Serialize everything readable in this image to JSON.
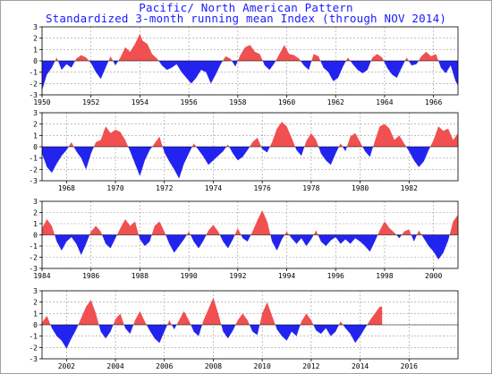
{
  "title": "Pacific/ North American Pattern",
  "subtitle": "Standardized 3-month running mean Index (through NOV 2014)",
  "colors": {
    "positive": "#f05050",
    "negative": "#2323f0",
    "grid": "#9a9a9a",
    "title": "#1a1aff"
  },
  "chart_data": [
    {
      "type": "area",
      "panel": 1,
      "x_range": [
        1950,
        1967
      ],
      "ylim": [
        -3,
        3
      ],
      "yticks": [
        -3,
        -2,
        -1,
        0,
        1,
        2,
        3
      ],
      "xticks": [
        "1950",
        "1952",
        "1954",
        "1956",
        "1958",
        "1960",
        "1962",
        "1964",
        "1966"
      ],
      "grid": "dashed",
      "points": [
        [
          1950.0,
          -2.6
        ],
        [
          1950.2,
          -1.2
        ],
        [
          1950.4,
          -0.6
        ],
        [
          1950.6,
          0.3
        ],
        [
          1950.8,
          -0.8
        ],
        [
          1951.0,
          -0.3
        ],
        [
          1951.2,
          -0.6
        ],
        [
          1951.4,
          0.2
        ],
        [
          1951.6,
          0.5
        ],
        [
          1951.8,
          0.3
        ],
        [
          1952.0,
          -0.2
        ],
        [
          1952.2,
          -1.0
        ],
        [
          1952.4,
          -1.6
        ],
        [
          1952.6,
          -0.6
        ],
        [
          1952.8,
          0.4
        ],
        [
          1953.0,
          -0.4
        ],
        [
          1953.2,
          0.3
        ],
        [
          1953.4,
          1.2
        ],
        [
          1953.6,
          0.8
        ],
        [
          1953.8,
          1.5
        ],
        [
          1954.0,
          2.4
        ],
        [
          1954.1,
          1.8
        ],
        [
          1954.3,
          1.5
        ],
        [
          1954.5,
          0.6
        ],
        [
          1954.7,
          0.2
        ],
        [
          1954.9,
          -0.4
        ],
        [
          1955.1,
          -0.8
        ],
        [
          1955.3,
          -0.6
        ],
        [
          1955.5,
          -0.3
        ],
        [
          1955.7,
          -1.0
        ],
        [
          1955.9,
          -1.5
        ],
        [
          1956.1,
          -2.0
        ],
        [
          1956.3,
          -1.5
        ],
        [
          1956.5,
          -0.8
        ],
        [
          1956.7,
          -1.0
        ],
        [
          1956.9,
          -2.0
        ],
        [
          1957.1,
          -1.2
        ],
        [
          1957.3,
          -0.3
        ],
        [
          1957.5,
          0.4
        ],
        [
          1957.7,
          0.2
        ],
        [
          1957.9,
          -0.5
        ],
        [
          1958.1,
          0.5
        ],
        [
          1958.3,
          1.2
        ],
        [
          1958.5,
          1.4
        ],
        [
          1958.7,
          0.8
        ],
        [
          1958.9,
          0.6
        ],
        [
          1959.1,
          -0.4
        ],
        [
          1959.3,
          -0.8
        ],
        [
          1959.5,
          -0.2
        ],
        [
          1959.7,
          0.6
        ],
        [
          1959.9,
          1.4
        ],
        [
          1960.1,
          0.6
        ],
        [
          1960.3,
          0.5
        ],
        [
          1960.5,
          0.2
        ],
        [
          1960.7,
          -0.4
        ],
        [
          1960.9,
          -0.8
        ],
        [
          1961.1,
          0.6
        ],
        [
          1961.3,
          0.4
        ],
        [
          1961.5,
          -0.6
        ],
        [
          1961.7,
          -1.0
        ],
        [
          1961.9,
          -1.8
        ],
        [
          1962.1,
          -1.5
        ],
        [
          1962.3,
          -0.5
        ],
        [
          1962.5,
          0.3
        ],
        [
          1962.7,
          -0.3
        ],
        [
          1962.9,
          -0.8
        ],
        [
          1963.1,
          -1.1
        ],
        [
          1963.3,
          -0.8
        ],
        [
          1963.5,
          0.3
        ],
        [
          1963.7,
          0.6
        ],
        [
          1963.9,
          0.3
        ],
        [
          1964.1,
          -0.6
        ],
        [
          1964.3,
          -1.2
        ],
        [
          1964.5,
          -1.5
        ],
        [
          1964.7,
          -0.6
        ],
        [
          1964.9,
          0.3
        ],
        [
          1965.1,
          -0.4
        ],
        [
          1965.3,
          -0.3
        ],
        [
          1965.5,
          0.4
        ],
        [
          1965.7,
          0.8
        ],
        [
          1965.9,
          0.4
        ],
        [
          1966.1,
          0.6
        ],
        [
          1966.3,
          -0.6
        ],
        [
          1966.5,
          -1.1
        ],
        [
          1966.7,
          -0.4
        ],
        [
          1966.9,
          -1.8
        ],
        [
          1967.0,
          -2.2
        ]
      ]
    },
    {
      "type": "area",
      "panel": 2,
      "x_range": [
        1967,
        1984
      ],
      "ylim": [
        -3,
        3
      ],
      "yticks": [
        -3,
        -2,
        -1,
        0,
        1,
        2,
        3
      ],
      "xticks": [
        "1968",
        "1970",
        "1972",
        "1974",
        "1976",
        "1978",
        "1980",
        "1982"
      ],
      "grid": "dashed",
      "points": [
        [
          1967.0,
          -0.6
        ],
        [
          1967.2,
          -1.8
        ],
        [
          1967.4,
          -2.3
        ],
        [
          1967.6,
          -1.5
        ],
        [
          1967.8,
          -0.8
        ],
        [
          1968.0,
          -0.3
        ],
        [
          1968.2,
          0.4
        ],
        [
          1968.4,
          -0.4
        ],
        [
          1968.6,
          -1.0
        ],
        [
          1968.8,
          -2.0
        ],
        [
          1969.0,
          -0.6
        ],
        [
          1969.2,
          0.4
        ],
        [
          1969.4,
          0.6
        ],
        [
          1969.6,
          1.8
        ],
        [
          1969.8,
          1.2
        ],
        [
          1970.0,
          1.5
        ],
        [
          1970.2,
          1.3
        ],
        [
          1970.4,
          0.6
        ],
        [
          1970.6,
          -0.4
        ],
        [
          1970.8,
          -1.5
        ],
        [
          1971.0,
          -2.6
        ],
        [
          1971.2,
          -1.2
        ],
        [
          1971.4,
          -0.3
        ],
        [
          1971.6,
          0.3
        ],
        [
          1971.8,
          0.9
        ],
        [
          1972.0,
          -0.5
        ],
        [
          1972.2,
          -1.3
        ],
        [
          1972.4,
          -2.0
        ],
        [
          1972.6,
          -2.8
        ],
        [
          1972.8,
          -1.5
        ],
        [
          1973.0,
          -0.6
        ],
        [
          1973.2,
          0.3
        ],
        [
          1973.4,
          -0.3
        ],
        [
          1973.6,
          -0.9
        ],
        [
          1973.8,
          -1.6
        ],
        [
          1974.0,
          -1.2
        ],
        [
          1974.2,
          -0.8
        ],
        [
          1974.4,
          -0.4
        ],
        [
          1974.6,
          0.2
        ],
        [
          1974.8,
          -0.6
        ],
        [
          1975.0,
          -1.2
        ],
        [
          1975.2,
          -0.9
        ],
        [
          1975.4,
          -0.3
        ],
        [
          1975.6,
          0.4
        ],
        [
          1975.8,
          0.8
        ],
        [
          1976.0,
          -0.2
        ],
        [
          1976.2,
          -0.5
        ],
        [
          1976.4,
          0.4
        ],
        [
          1976.6,
          1.6
        ],
        [
          1976.8,
          2.2
        ],
        [
          1977.0,
          1.8
        ],
        [
          1977.2,
          0.8
        ],
        [
          1977.4,
          -0.3
        ],
        [
          1977.6,
          -0.8
        ],
        [
          1977.8,
          0.5
        ],
        [
          1978.0,
          1.2
        ],
        [
          1978.2,
          0.6
        ],
        [
          1978.4,
          -0.6
        ],
        [
          1978.6,
          -1.2
        ],
        [
          1978.8,
          -1.6
        ],
        [
          1979.0,
          -0.6
        ],
        [
          1979.2,
          0.3
        ],
        [
          1979.4,
          -0.4
        ],
        [
          1979.6,
          0.9
        ],
        [
          1979.8,
          1.2
        ],
        [
          1980.0,
          0.4
        ],
        [
          1980.2,
          -0.4
        ],
        [
          1980.4,
          -0.9
        ],
        [
          1980.6,
          0.5
        ],
        [
          1980.8,
          1.8
        ],
        [
          1981.0,
          2.0
        ],
        [
          1981.2,
          1.6
        ],
        [
          1981.4,
          0.6
        ],
        [
          1981.6,
          1.0
        ],
        [
          1981.8,
          0.3
        ],
        [
          1982.0,
          -0.4
        ],
        [
          1982.2,
          -1.2
        ],
        [
          1982.4,
          -1.8
        ],
        [
          1982.6,
          -1.3
        ],
        [
          1982.8,
          -0.3
        ],
        [
          1983.0,
          0.6
        ],
        [
          1983.2,
          1.8
        ],
        [
          1983.4,
          1.4
        ],
        [
          1983.6,
          1.6
        ],
        [
          1983.8,
          0.6
        ],
        [
          1984.0,
          1.2
        ]
      ]
    },
    {
      "type": "area",
      "panel": 3,
      "x_range": [
        1984,
        2001
      ],
      "ylim": [
        -3,
        3
      ],
      "yticks": [
        -3,
        -2,
        -1,
        0,
        1,
        2,
        3
      ],
      "xticks": [
        "1984",
        "1986",
        "1988",
        "1990",
        "1992",
        "1994",
        "1996",
        "1998",
        "2000"
      ],
      "grid": "dashed",
      "points": [
        [
          1984.0,
          0.6
        ],
        [
          1984.2,
          1.4
        ],
        [
          1984.4,
          0.8
        ],
        [
          1984.6,
          -0.6
        ],
        [
          1984.8,
          -1.4
        ],
        [
          1985.0,
          -0.6
        ],
        [
          1985.2,
          -0.2
        ],
        [
          1985.4,
          -0.8
        ],
        [
          1985.6,
          -1.8
        ],
        [
          1985.8,
          -0.8
        ],
        [
          1986.0,
          0.3
        ],
        [
          1986.2,
          0.8
        ],
        [
          1986.4,
          0.3
        ],
        [
          1986.6,
          -0.8
        ],
        [
          1986.8,
          -1.2
        ],
        [
          1987.0,
          -0.3
        ],
        [
          1987.2,
          0.6
        ],
        [
          1987.4,
          1.4
        ],
        [
          1987.6,
          0.8
        ],
        [
          1987.8,
          1.2
        ],
        [
          1988.0,
          -0.4
        ],
        [
          1988.2,
          -1.0
        ],
        [
          1988.4,
          -0.6
        ],
        [
          1988.6,
          0.8
        ],
        [
          1988.8,
          1.2
        ],
        [
          1989.0,
          0.3
        ],
        [
          1989.2,
          -0.8
        ],
        [
          1989.4,
          -1.6
        ],
        [
          1989.6,
          -1.0
        ],
        [
          1989.8,
          -0.4
        ],
        [
          1990.0,
          0.3
        ],
        [
          1990.2,
          -0.6
        ],
        [
          1990.4,
          -1.2
        ],
        [
          1990.6,
          -0.5
        ],
        [
          1990.8,
          0.4
        ],
        [
          1991.0,
          0.9
        ],
        [
          1991.2,
          0.3
        ],
        [
          1991.4,
          -0.6
        ],
        [
          1991.6,
          -1.2
        ],
        [
          1991.8,
          -0.4
        ],
        [
          1992.0,
          0.6
        ],
        [
          1992.2,
          -0.3
        ],
        [
          1992.4,
          -0.6
        ],
        [
          1992.6,
          0.3
        ],
        [
          1992.8,
          1.3
        ],
        [
          1993.0,
          2.2
        ],
        [
          1993.2,
          1.2
        ],
        [
          1993.4,
          -0.6
        ],
        [
          1993.6,
          -1.4
        ],
        [
          1993.8,
          -0.4
        ],
        [
          1994.0,
          0.3
        ],
        [
          1994.2,
          -0.3
        ],
        [
          1994.4,
          -0.8
        ],
        [
          1994.6,
          -0.3
        ],
        [
          1994.8,
          -1.0
        ],
        [
          1995.0,
          -0.4
        ],
        [
          1995.2,
          0.4
        ],
        [
          1995.4,
          -0.6
        ],
        [
          1995.6,
          -1.0
        ],
        [
          1995.8,
          -0.5
        ],
        [
          1996.0,
          -0.2
        ],
        [
          1996.2,
          -0.8
        ],
        [
          1996.4,
          -0.4
        ],
        [
          1996.6,
          -0.8
        ],
        [
          1996.8,
          -0.3
        ],
        [
          1997.0,
          -0.6
        ],
        [
          1997.2,
          -1.0
        ],
        [
          1997.4,
          -1.5
        ],
        [
          1997.6,
          -0.6
        ],
        [
          1997.8,
          0.4
        ],
        [
          1998.0,
          1.2
        ],
        [
          1998.2,
          0.6
        ],
        [
          1998.4,
          0.2
        ],
        [
          1998.6,
          -0.3
        ],
        [
          1998.8,
          0.3
        ],
        [
          1999.0,
          0.5
        ],
        [
          1999.2,
          -0.6
        ],
        [
          1999.4,
          0.4
        ],
        [
          1999.6,
          -0.3
        ],
        [
          1999.8,
          -1.0
        ],
        [
          2000.0,
          -1.5
        ],
        [
          2000.2,
          -2.2
        ],
        [
          2000.4,
          -1.6
        ],
        [
          2000.6,
          -0.5
        ],
        [
          2000.8,
          1.2
        ],
        [
          2001.0,
          1.8
        ]
      ]
    },
    {
      "type": "area",
      "panel": 4,
      "x_range": [
        2001,
        2018
      ],
      "ylim": [
        -3,
        3
      ],
      "yticks": [
        -3,
        -2,
        -1,
        0,
        1,
        2,
        3
      ],
      "xticks": [
        "2002",
        "2004",
        "2006",
        "2008",
        "2010",
        "2012",
        "2014",
        "2016"
      ],
      "grid": "dashed",
      "points": [
        [
          2001.0,
          0.2
        ],
        [
          2001.2,
          0.8
        ],
        [
          2001.4,
          -0.3
        ],
        [
          2001.6,
          -1.0
        ],
        [
          2001.8,
          -1.4
        ],
        [
          2002.0,
          -2.1
        ],
        [
          2002.2,
          -1.2
        ],
        [
          2002.4,
          -0.4
        ],
        [
          2002.6,
          0.6
        ],
        [
          2002.8,
          1.6
        ],
        [
          2003.0,
          2.2
        ],
        [
          2003.2,
          1.0
        ],
        [
          2003.4,
          -0.6
        ],
        [
          2003.6,
          -1.2
        ],
        [
          2003.8,
          -0.6
        ],
        [
          2004.0,
          0.5
        ],
        [
          2004.2,
          1.0
        ],
        [
          2004.4,
          -0.3
        ],
        [
          2004.6,
          -0.8
        ],
        [
          2004.8,
          0.4
        ],
        [
          2005.0,
          1.2
        ],
        [
          2005.2,
          0.3
        ],
        [
          2005.4,
          -0.5
        ],
        [
          2005.6,
          -1.2
        ],
        [
          2005.8,
          -1.6
        ],
        [
          2006.0,
          -0.6
        ],
        [
          2006.2,
          0.4
        ],
        [
          2006.4,
          -0.4
        ],
        [
          2006.6,
          0.4
        ],
        [
          2006.8,
          1.2
        ],
        [
          2007.0,
          0.4
        ],
        [
          2007.2,
          -0.6
        ],
        [
          2007.4,
          -1.0
        ],
        [
          2007.6,
          0.4
        ],
        [
          2007.8,
          1.4
        ],
        [
          2008.0,
          2.4
        ],
        [
          2008.2,
          1.0
        ],
        [
          2008.4,
          -0.6
        ],
        [
          2008.6,
          -1.2
        ],
        [
          2008.8,
          -0.5
        ],
        [
          2009.0,
          0.4
        ],
        [
          2009.2,
          1.0
        ],
        [
          2009.4,
          0.4
        ],
        [
          2009.6,
          -0.6
        ],
        [
          2009.8,
          -0.9
        ],
        [
          2010.0,
          1.0
        ],
        [
          2010.2,
          2.0
        ],
        [
          2010.4,
          0.8
        ],
        [
          2010.6,
          -0.4
        ],
        [
          2010.8,
          -1.0
        ],
        [
          2011.0,
          -1.4
        ],
        [
          2011.2,
          -0.6
        ],
        [
          2011.4,
          -1.0
        ],
        [
          2011.6,
          0.3
        ],
        [
          2011.8,
          1.0
        ],
        [
          2012.0,
          0.4
        ],
        [
          2012.2,
          -0.5
        ],
        [
          2012.4,
          -0.8
        ],
        [
          2012.6,
          -0.3
        ],
        [
          2012.8,
          -1.0
        ],
        [
          2013.0,
          -0.6
        ],
        [
          2013.2,
          0.3
        ],
        [
          2013.4,
          -0.3
        ],
        [
          2013.6,
          -0.8
        ],
        [
          2013.8,
          -1.6
        ],
        [
          2014.0,
          -1.0
        ],
        [
          2014.2,
          -0.3
        ],
        [
          2014.4,
          0.4
        ],
        [
          2014.6,
          1.0
        ],
        [
          2014.8,
          1.6
        ],
        [
          2014.9,
          1.6
        ]
      ]
    }
  ]
}
